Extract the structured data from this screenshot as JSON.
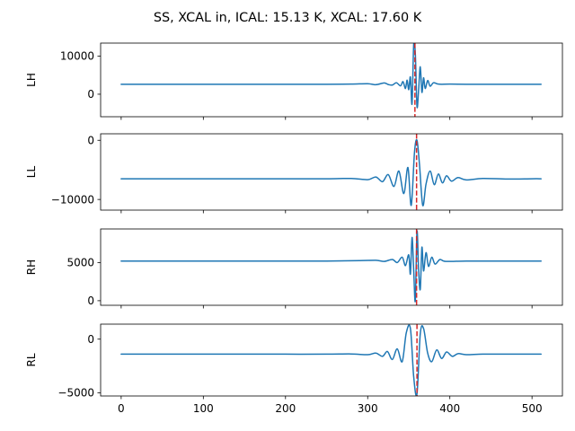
{
  "chart_data": {
    "type": "line",
    "title": "SS, XCAL in, ICAL: 15.13 K, XCAL: 17.60 K",
    "xlim": [
      -25,
      537
    ],
    "xticks": [
      0,
      100,
      200,
      300,
      400,
      500
    ],
    "xtick_labels": [
      "0",
      "100",
      "200",
      "300",
      "400",
      "500"
    ],
    "sharex": true,
    "colors": {
      "trace": "#1f77b4",
      "marker": "#d62728"
    },
    "marker_style": "dashed vertical line",
    "panels": [
      {
        "ylabel": "LH",
        "ylim": [
          -5900,
          13400
        ],
        "yticks": [
          0,
          10000
        ],
        "ytick_labels": [
          "0",
          "10000"
        ],
        "marker_x": 357.5,
        "series": {
          "x": [
            0,
            50,
            100,
            150,
            200,
            250,
            280,
            300,
            310,
            320,
            325,
            330,
            335,
            340,
            343,
            346,
            348,
            350,
            352,
            354,
            356,
            358,
            360,
            362,
            364,
            366,
            368,
            370,
            373,
            376,
            380,
            385,
            390,
            400,
            420,
            450,
            500,
            511
          ],
          "y": [
            2600,
            2600,
            2600,
            2600,
            2600,
            2600,
            2650,
            2750,
            2500,
            2950,
            2550,
            2400,
            3000,
            2200,
            3300,
            1500,
            3700,
            1200,
            4500,
            -2500,
            13000,
            10500,
            -3200,
            1200,
            7200,
            500,
            4300,
            1500,
            3600,
            2100,
            3000,
            2700,
            2600,
            2650,
            2600,
            2600,
            2600,
            2600
          ]
        }
      },
      {
        "ylabel": "LL",
        "ylim": [
          -11800,
          1100
        ],
        "yticks": [
          0,
          -10000
        ],
        "ytick_labels": [
          "0",
          "−10000"
        ],
        "marker_x": 359.5,
        "series": {
          "x": [
            0,
            50,
            100,
            150,
            200,
            250,
            280,
            300,
            310,
            318,
            325,
            332,
            338,
            344,
            349,
            353,
            357,
            360,
            363,
            367,
            371,
            376,
            381,
            386,
            391,
            396,
            402,
            410,
            420,
            440,
            470,
            500,
            511
          ],
          "y": [
            -6500,
            -6500,
            -6500,
            -6500,
            -6500,
            -6500,
            -6450,
            -6650,
            -6200,
            -7000,
            -5800,
            -7800,
            -5200,
            -9000,
            -4600,
            -11000,
            -2000,
            0,
            -4000,
            -11000,
            -7400,
            -5200,
            -7500,
            -5700,
            -7200,
            -6000,
            -6900,
            -6300,
            -6700,
            -6450,
            -6550,
            -6500,
            -6500
          ]
        }
      },
      {
        "ylabel": "RH",
        "ylim": [
          -600,
          9400
        ],
        "yticks": [
          0,
          5000
        ],
        "ytick_labels": [
          "0",
          "5000"
        ],
        "marker_x": 359.5,
        "series": {
          "x": [
            0,
            50,
            100,
            150,
            200,
            250,
            290,
            310,
            320,
            330,
            336,
            342,
            346,
            350,
            352,
            354,
            356,
            358,
            360,
            362,
            364,
            366,
            368,
            371,
            374,
            378,
            382,
            388,
            395,
            420,
            460,
            511
          ],
          "y": [
            5200,
            5200,
            5200,
            5200,
            5200,
            5200,
            5250,
            5300,
            5150,
            5400,
            5000,
            5700,
            4600,
            6000,
            3500,
            8300,
            4000,
            0,
            9100,
            4000,
            1500,
            7000,
            3900,
            6300,
            4500,
            5700,
            4800,
            5400,
            5150,
            5200,
            5200,
            5200
          ]
        }
      },
      {
        "ylabel": "RL",
        "ylim": [
          -5300,
          1400
        ],
        "yticks": [
          0,
          -5000
        ],
        "ytick_labels": [
          "0",
          "−5000"
        ],
        "marker_x": 360,
        "series": {
          "x": [
            0,
            50,
            100,
            150,
            200,
            250,
            280,
            300,
            310,
            318,
            324,
            330,
            336,
            342,
            347,
            352,
            356,
            360,
            364,
            368,
            373,
            378,
            384,
            390,
            396,
            403,
            410,
            420,
            440,
            470,
            511
          ],
          "y": [
            -1400,
            -1400,
            -1400,
            -1400,
            -1400,
            -1400,
            -1380,
            -1450,
            -1300,
            -1600,
            -1150,
            -1900,
            -900,
            -2100,
            600,
            1000,
            -3500,
            -5100,
            500,
            1000,
            -1300,
            -2100,
            -1000,
            -1800,
            -1200,
            -1600,
            -1350,
            -1450,
            -1400,
            -1400,
            -1400
          ]
        }
      }
    ]
  }
}
